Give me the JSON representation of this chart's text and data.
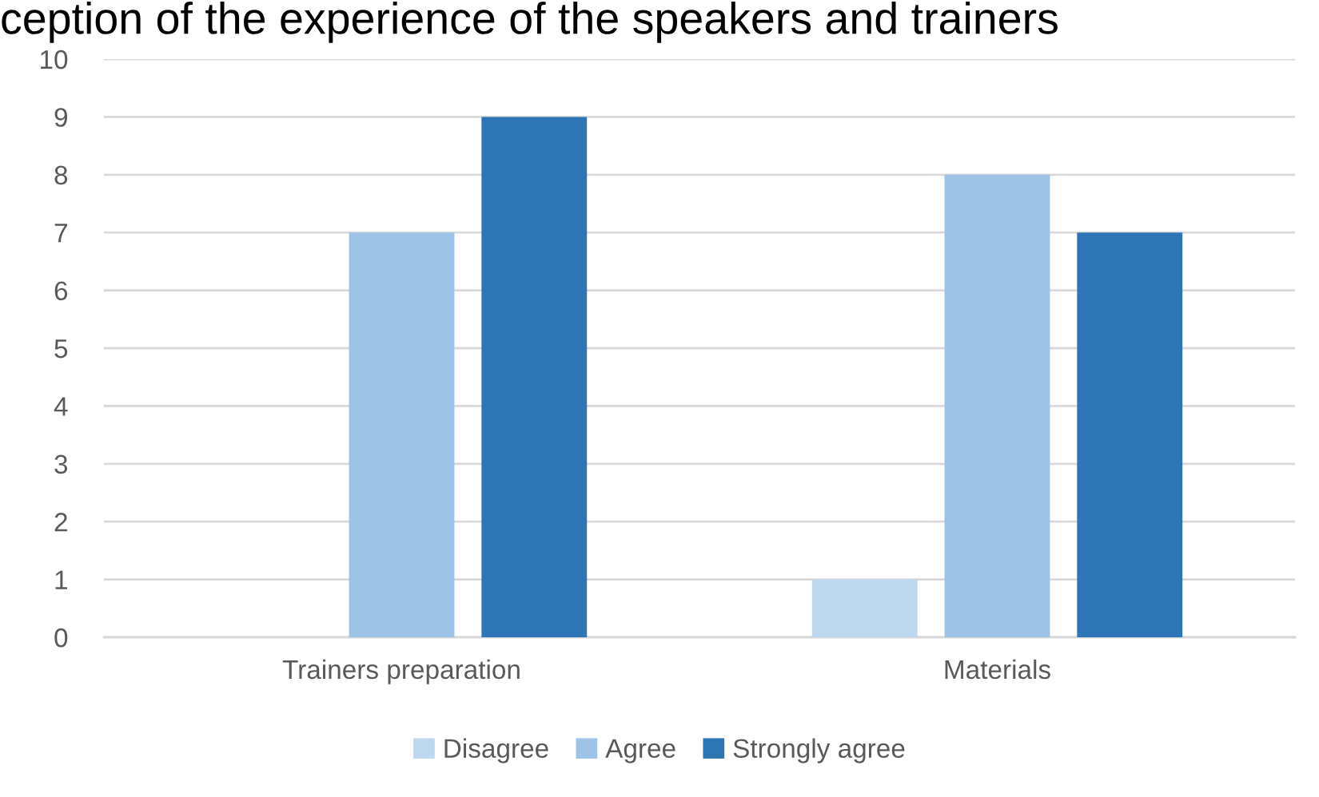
{
  "chart_data": {
    "type": "bar",
    "title": "ception of the experience of the speakers and trainers",
    "categories": [
      "Trainers preparation",
      "Materials"
    ],
    "series": [
      {
        "name": "Disagree",
        "color": "#bdd7ee",
        "values": [
          0,
          1
        ]
      },
      {
        "name": "Agree",
        "color": "#9dc3e6",
        "values": [
          7,
          8
        ]
      },
      {
        "name": "Strongly agree",
        "color": "#2e75b6",
        "values": [
          9,
          7
        ]
      }
    ],
    "ylim": [
      0,
      10
    ],
    "yticks": [
      0,
      1,
      2,
      3,
      4,
      5,
      6,
      7,
      8,
      9,
      10
    ],
    "grid": "y",
    "legend": "bottom"
  }
}
